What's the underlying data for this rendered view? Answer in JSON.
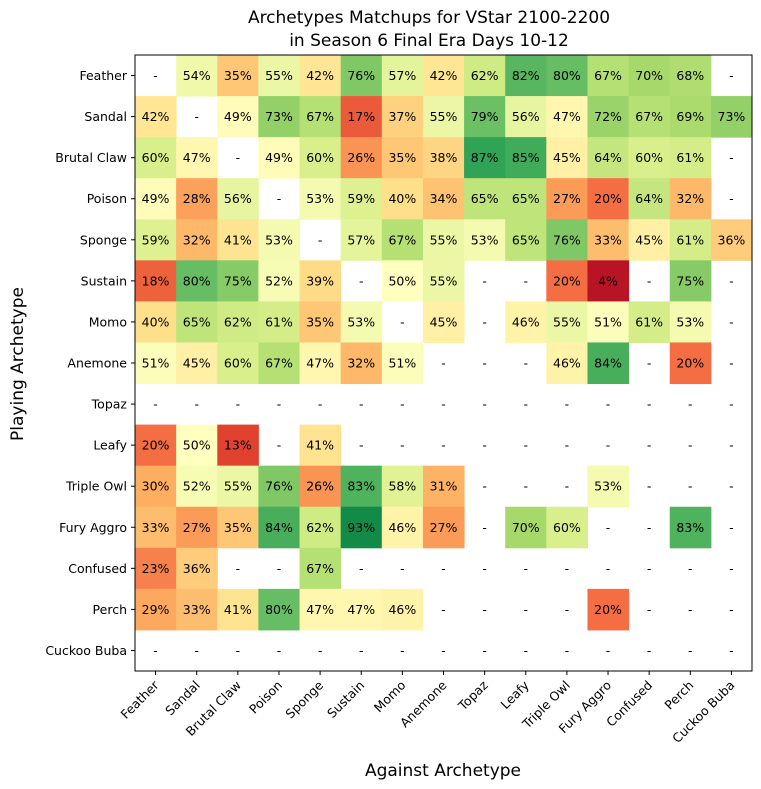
{
  "chart_data": {
    "type": "heatmap",
    "title_line1": "Archetypes Matchups for VStar 2100-2200",
    "title_line2": "in Season 6 Final Era Days 10-12",
    "xlabel": "Against Archetype",
    "ylabel": "Playing Archetype",
    "rows": [
      "Feather",
      "Sandal",
      "Brutal Claw",
      "Poison",
      "Sponge",
      "Sustain",
      "Momo",
      "Anemone",
      "Topaz",
      "Leafy",
      "Triple Owl",
      "Fury Aggro",
      "Confused",
      "Perch",
      "Cuckoo Buba"
    ],
    "columns": [
      "Feather",
      "Sandal",
      "Brutal Claw",
      "Poison",
      "Sponge",
      "Sustain",
      "Momo",
      "Anemone",
      "Topaz",
      "Leafy",
      "Triple Owl",
      "Fury Aggro",
      "Confused",
      "Perch",
      "Cuckoo Buba"
    ],
    "colormap": "RdYlGn",
    "value_range": [
      0,
      100
    ],
    "missing_label": "-",
    "values": [
      [
        null,
        54,
        35,
        55,
        42,
        76,
        57,
        42,
        62,
        82,
        80,
        67,
        70,
        68,
        null
      ],
      [
        42,
        null,
        49,
        73,
        67,
        17,
        37,
        55,
        79,
        56,
        47,
        72,
        67,
        69,
        73
      ],
      [
        60,
        47,
        null,
        49,
        60,
        26,
        35,
        38,
        87,
        85,
        45,
        64,
        60,
        61,
        null
      ],
      [
        49,
        28,
        56,
        null,
        53,
        59,
        40,
        34,
        65,
        65,
        27,
        20,
        64,
        32,
        null
      ],
      [
        59,
        32,
        41,
        53,
        null,
        57,
        67,
        55,
        53,
        65,
        76,
        33,
        45,
        61,
        36
      ],
      [
        18,
        80,
        75,
        52,
        39,
        null,
        50,
        55,
        null,
        null,
        20,
        4,
        null,
        75,
        null
      ],
      [
        40,
        65,
        62,
        61,
        35,
        53,
        null,
        45,
        null,
        46,
        55,
        51,
        61,
        53,
        null
      ],
      [
        51,
        45,
        60,
        67,
        47,
        32,
        51,
        null,
        null,
        null,
        46,
        84,
        null,
        20,
        null
      ],
      [
        null,
        null,
        null,
        null,
        null,
        null,
        null,
        null,
        null,
        null,
        null,
        null,
        null,
        null,
        null
      ],
      [
        20,
        50,
        13,
        null,
        41,
        null,
        null,
        null,
        null,
        null,
        null,
        null,
        null,
        null,
        null
      ],
      [
        30,
        52,
        55,
        76,
        26,
        83,
        58,
        31,
        null,
        null,
        null,
        53,
        null,
        null,
        null
      ],
      [
        33,
        27,
        35,
        84,
        62,
        93,
        46,
        27,
        null,
        70,
        60,
        null,
        null,
        83,
        null
      ],
      [
        23,
        36,
        null,
        null,
        67,
        null,
        null,
        null,
        null,
        null,
        null,
        null,
        null,
        null,
        null
      ],
      [
        29,
        33,
        41,
        80,
        47,
        47,
        46,
        null,
        null,
        null,
        null,
        20,
        null,
        null,
        null
      ],
      [
        null,
        null,
        null,
        null,
        null,
        null,
        null,
        null,
        null,
        null,
        null,
        null,
        null,
        null,
        null
      ]
    ]
  }
}
